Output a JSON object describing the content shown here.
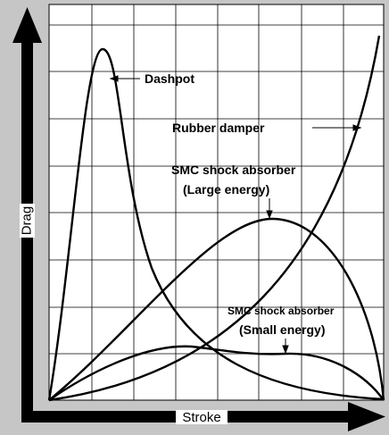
{
  "axes": {
    "y_label": "Drag",
    "x_label": "Stroke"
  },
  "annotations": {
    "dashpot": "Dashpot",
    "rubber_damper": "Rubber damper",
    "smc_large": [
      "SMC shock absorber",
      "(Large energy)"
    ],
    "smc_small": [
      "SMC shock absorber",
      "(Small energy)"
    ]
  }
}
